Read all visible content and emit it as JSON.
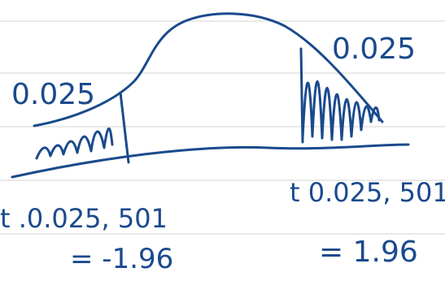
{
  "colors": {
    "ink": "#1a4a8c",
    "rule_lines": "#dcdcdc",
    "background": "#ffffff"
  },
  "labels": {
    "left_tail_area": "0.025",
    "right_tail_area": "0.025",
    "left_t_expression": "t .0.025, 501",
    "left_t_value": "= -1.96",
    "right_t_expression": "t 0.025, 501",
    "right_t_value": "= 1.96"
  }
}
